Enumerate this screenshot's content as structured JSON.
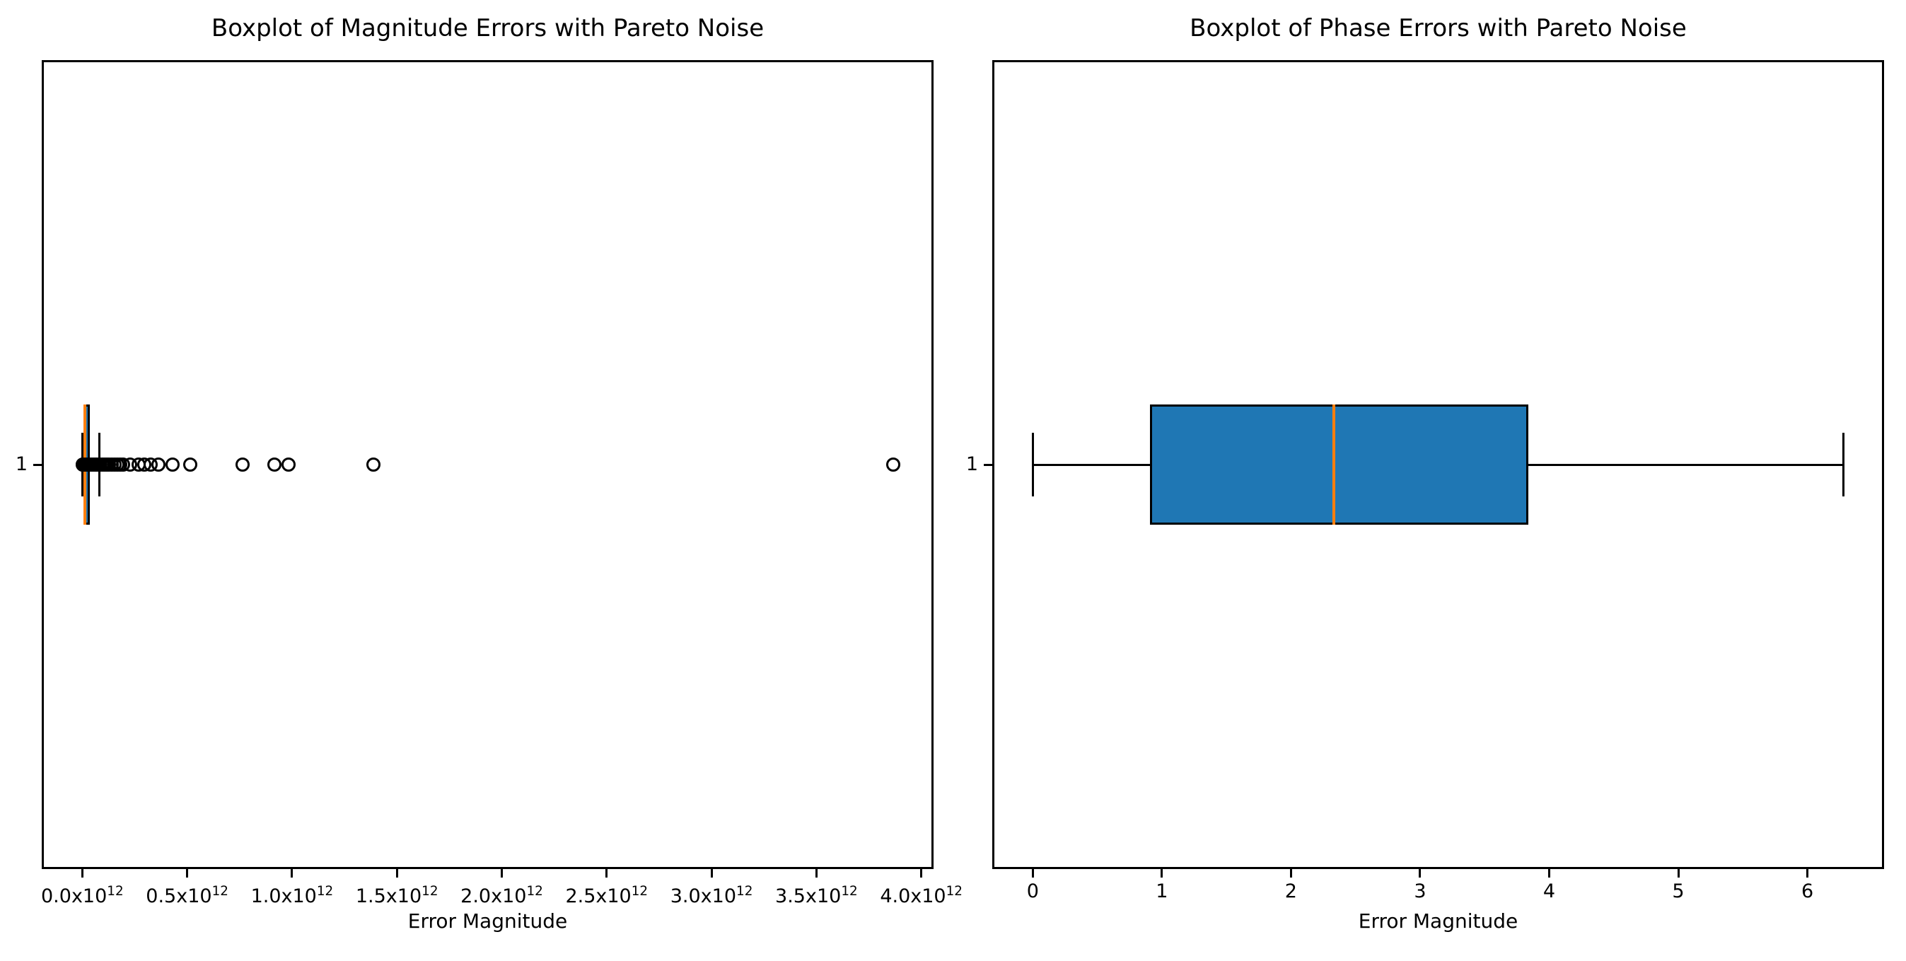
{
  "figure": {
    "background": "#ffffff",
    "text_color": "#000000"
  },
  "chart_data": [
    {
      "type": "boxplot",
      "orientation": "horizontal",
      "title": "Boxplot of Magnitude Errors with Pareto Noise",
      "xlabel": "Error Magnitude",
      "ylabel": "",
      "ytick_label": "1",
      "xlim": [
        -193300000000.0,
        4058500000000.0
      ],
      "grid": false,
      "xticks": [
        {
          "value": 0,
          "base": "0.0x10",
          "sup": "12"
        },
        {
          "value": 500000000000.0,
          "base": "0.5x10",
          "sup": "12"
        },
        {
          "value": 1000000000000.0,
          "base": "1.0x10",
          "sup": "12"
        },
        {
          "value": 1500000000000.0,
          "base": "1.5x10",
          "sup": "12"
        },
        {
          "value": 2000000000000.0,
          "base": "2.0x10",
          "sup": "12"
        },
        {
          "value": 2500000000000.0,
          "base": "2.5x10",
          "sup": "12"
        },
        {
          "value": 3000000000000.0,
          "base": "3.0x10",
          "sup": "12"
        },
        {
          "value": 3500000000000.0,
          "base": "3.5x10",
          "sup": "12"
        },
        {
          "value": 4000000000000.0,
          "base": "4.0x10",
          "sup": "12"
        }
      ],
      "box": {
        "position": 1,
        "whislo": 500000000.0,
        "q1": 4000000000.0,
        "median": 12000000000.0,
        "q3": 35000000000.0,
        "whishi": 80000000000.0,
        "fliers": [
          1000000000.0,
          3000000000.0,
          5000000000.0,
          7000000000.0,
          9000000000.0,
          11000000000.0,
          14000000000.0,
          17000000000.0,
          20000000000.0,
          24000000000.0,
          28000000000.0,
          32000000000.0,
          36000000000.0,
          41000000000.0,
          46000000000.0,
          52000000000.0,
          58000000000.0,
          65000000000.0,
          72000000000.0,
          80000000000.0,
          88000000000.0,
          97000000000.0,
          107000000000.0,
          117000000000.0,
          128000000000.0,
          140000000000.0,
          153000000000.0,
          167000000000.0,
          182000000000.0,
          195000000000.0,
          229000000000.0,
          269000000000.0,
          296000000000.0,
          326000000000.0,
          364000000000.0,
          431000000000.0,
          515000000000.0,
          764000000000.0,
          916000000000.0,
          983000000000.0,
          1387000000000.0,
          3865000000000.0
        ]
      },
      "colors": {
        "box_fill": "#1f77b4",
        "box_edge": "#000000",
        "median": "#ff7f0e",
        "whisker": "#000000",
        "flier_edge": "#000000"
      },
      "layout": {
        "axes_rect": [
          59,
          85,
          1261,
          1144
        ],
        "box_center_frac": 0.5,
        "box_half_frac": 0.0743,
        "cap_half_frac": 0.0394
      }
    },
    {
      "type": "boxplot",
      "orientation": "horizontal",
      "title": "Boxplot of Phase Errors with Pareto Noise",
      "xlabel": "Error Magnitude",
      "ylabel": "",
      "ytick_label": "1",
      "xlim": [
        -0.314,
        6.594
      ],
      "grid": false,
      "xticks": [
        {
          "value": 0,
          "base": "0",
          "sup": null
        },
        {
          "value": 1,
          "base": "1",
          "sup": null
        },
        {
          "value": 2,
          "base": "2",
          "sup": null
        },
        {
          "value": 3,
          "base": "3",
          "sup": null
        },
        {
          "value": 4,
          "base": "4",
          "sup": null
        },
        {
          "value": 5,
          "base": "5",
          "sup": null
        },
        {
          "value": 6,
          "base": "6",
          "sup": null
        }
      ],
      "box": {
        "position": 1,
        "whislo": 0.0,
        "q1": 0.91,
        "median": 2.33,
        "q3": 3.84,
        "whishi": 6.28,
        "fliers": []
      },
      "colors": {
        "box_fill": "#1f77b4",
        "box_edge": "#000000",
        "median": "#ff7f0e",
        "whisker": "#000000",
        "flier_edge": "#000000"
      },
      "layout": {
        "axes_rect": [
          1403,
          85,
          1261,
          1144
        ],
        "box_center_frac": 0.5,
        "box_half_frac": 0.0743,
        "cap_half_frac": 0.0394
      }
    }
  ]
}
